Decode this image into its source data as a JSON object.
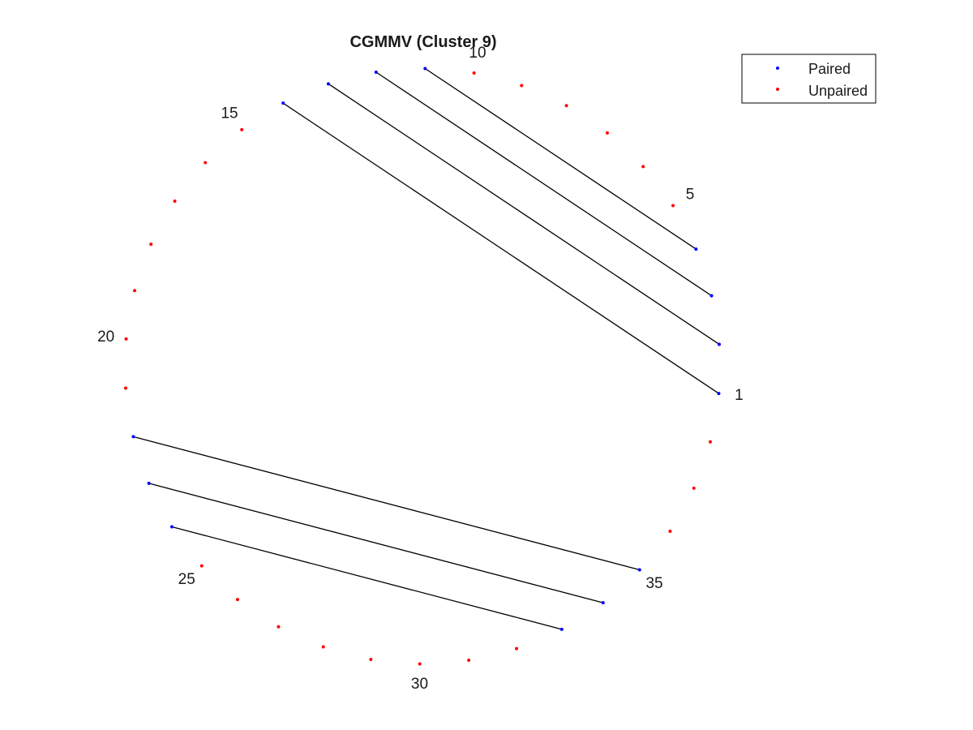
{
  "chart_data": {
    "type": "circle_plot",
    "title": "CGMMV (Cluster 9)",
    "n_positions": 38,
    "start_position": 1,
    "direction": "counterclockwise",
    "position_labels": [
      1,
      5,
      10,
      15,
      20,
      25,
      30,
      35
    ],
    "paired_positions": [
      1,
      2,
      3,
      4,
      14,
      13,
      12,
      11,
      24,
      23,
      22,
      33,
      34,
      35
    ],
    "pairs": [
      [
        1,
        14
      ],
      [
        2,
        13
      ],
      [
        3,
        12
      ],
      [
        4,
        11
      ],
      [
        22,
        35
      ],
      [
        23,
        34
      ],
      [
        24,
        33
      ]
    ],
    "legend": {
      "placement": "top-right",
      "entries": [
        {
          "label": "Paired",
          "color": "#0000ff"
        },
        {
          "label": "Unpaired",
          "color": "#ff0000"
        }
      ]
    },
    "colors": {
      "paired": "#0000ff",
      "unpaired": "#ff0000",
      "pair_line": "#000000"
    }
  }
}
